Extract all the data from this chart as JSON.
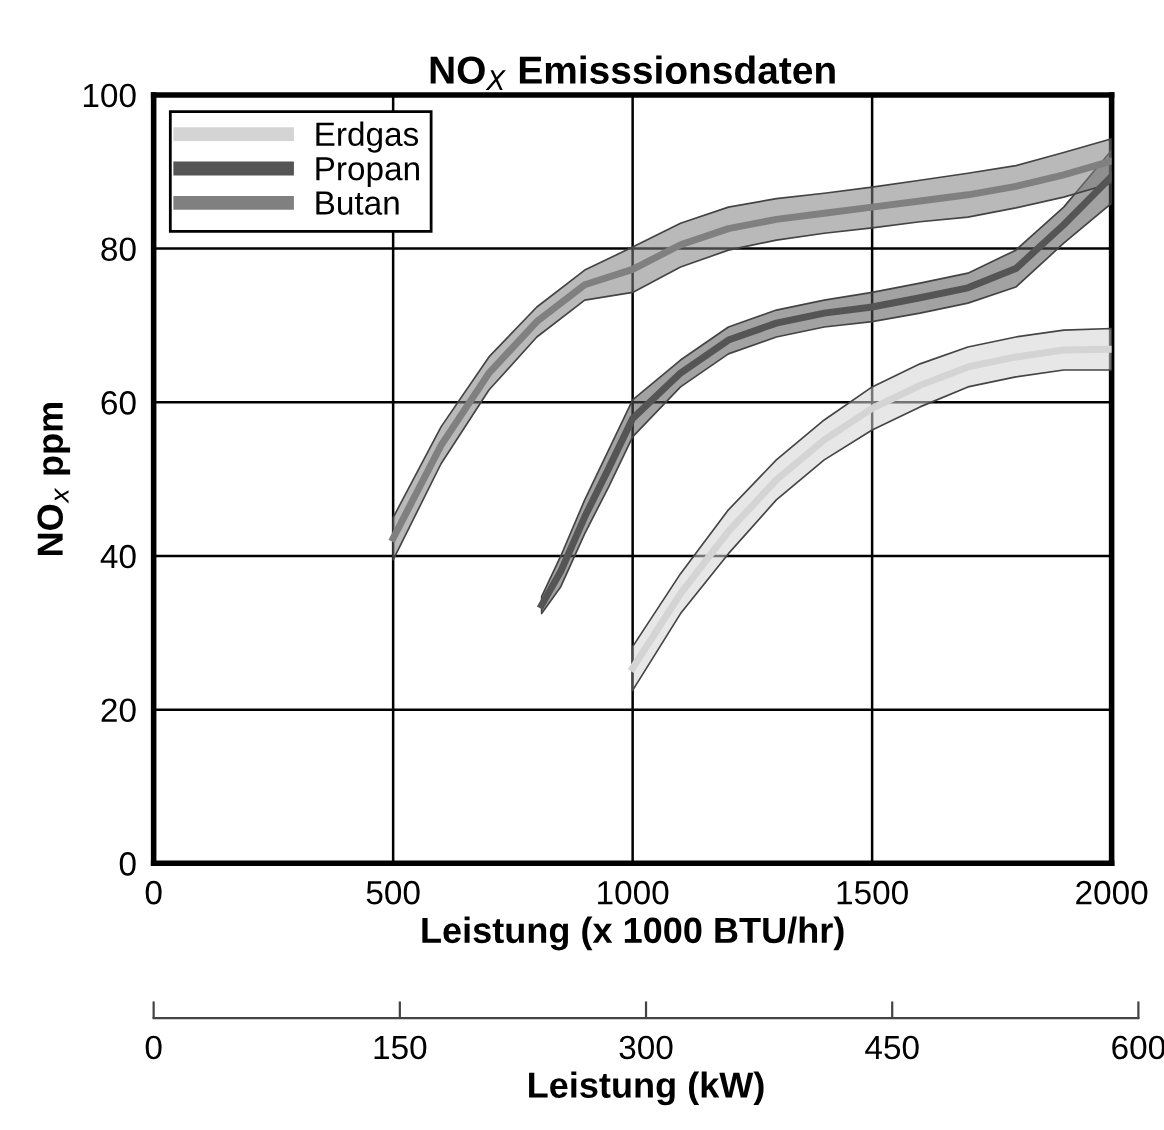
{
  "chart_data": {
    "type": "line",
    "title": "NO$_{X}$ Emisssionsdaten",
    "xlabel": "Leistung (x 1000 BTU/hr)",
    "ylabel": "NO$_{x}$ ppm",
    "x2label": "Leistung (kW)",
    "xlim": [
      0,
      2000
    ],
    "xticks": [
      0,
      500,
      1000,
      1500,
      2000
    ],
    "ylim": [
      0,
      100
    ],
    "yticks": [
      0,
      20,
      40,
      60,
      80,
      100
    ],
    "x2lim": [
      0,
      600
    ],
    "x2ticks": [
      0,
      150,
      300,
      450,
      600
    ],
    "grid": true,
    "legend": "top left",
    "marker": "none",
    "line_style": "solid",
    "series": [
      {
        "name": "Erdgas",
        "color": "#d4d4d4",
        "x": [
          1000,
          1100,
          1200,
          1300,
          1400,
          1500,
          1600,
          1700,
          1800,
          1900,
          2000
        ],
        "values": [
          25.4,
          35.1,
          43.2,
          49.9,
          55.1,
          59.2,
          62.2,
          64.6,
          65.9,
          66.8,
          66.9
        ],
        "lower": [
          22.5,
          32.5,
          40.3,
          47.3,
          52.5,
          56.4,
          59.4,
          62,
          63.3,
          64.2,
          64.2
        ],
        "upper": [
          28.2,
          37.7,
          46,
          52.5,
          57.7,
          62,
          65,
          67.2,
          68.5,
          69.4,
          69.6
        ]
      },
      {
        "name": "Propan",
        "color": "#555555",
        "x": [
          810,
          850,
          900,
          950,
          1000,
          1100,
          1200,
          1300,
          1400,
          1500,
          1600,
          1700,
          1800,
          1900,
          2000
        ],
        "values": [
          33.6,
          38,
          45.1,
          51.4,
          57.9,
          63.8,
          68.1,
          70.3,
          71.6,
          72.4,
          73.6,
          74.9,
          77.4,
          83.1,
          89.4
        ],
        "lower": [
          32.5,
          36,
          42.9,
          49,
          55.5,
          62,
          66.3,
          68.5,
          69.8,
          70.5,
          71.6,
          72.9,
          75,
          80.7,
          85.9
        ],
        "upper": [
          34.7,
          40,
          47.3,
          53.8,
          60.3,
          65.5,
          69.8,
          72,
          73.3,
          74.3,
          75.5,
          76.8,
          79.8,
          85.4,
          92.8
        ]
      },
      {
        "name": "Butan",
        "color": "#808080",
        "x": [
          500,
          600,
          700,
          800,
          900,
          1000,
          1100,
          1200,
          1300,
          1400,
          1500,
          1600,
          1700,
          1800,
          1900,
          2000
        ],
        "values": [
          42.3,
          54.4,
          63.8,
          70.5,
          75.3,
          77.3,
          80.5,
          82.6,
          83.8,
          84.6,
          85.4,
          86.2,
          87,
          88.1,
          89.6,
          91.4
        ],
        "lower": [
          39.5,
          52,
          61.6,
          68.5,
          73.3,
          74.3,
          77.6,
          79.8,
          81.1,
          82,
          82.7,
          83.5,
          84.1,
          85.3,
          86.7,
          88.5
        ],
        "upper": [
          45,
          56.8,
          65.9,
          72.4,
          77.2,
          80.2,
          83.3,
          85.4,
          86.5,
          87.2,
          88,
          88.9,
          89.8,
          90.8,
          92.5,
          94.3
        ]
      }
    ]
  }
}
